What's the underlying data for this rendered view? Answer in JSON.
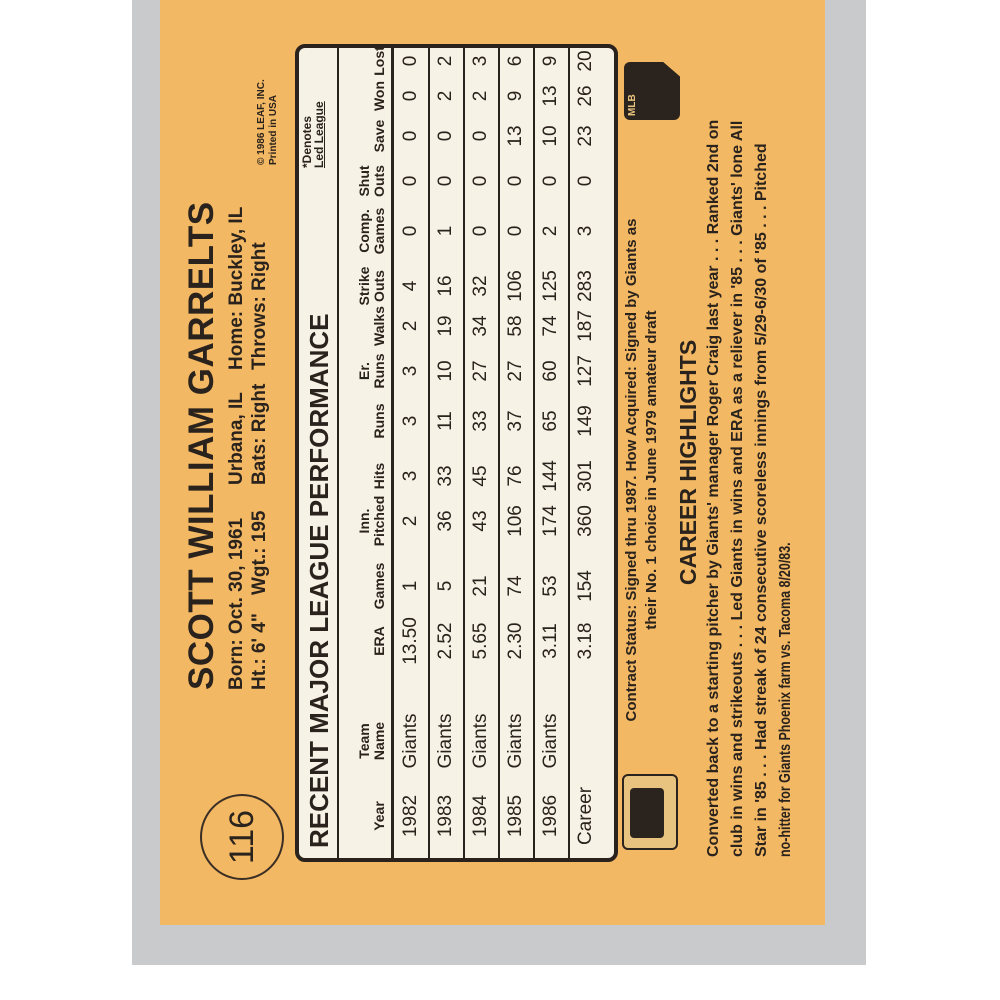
{
  "card": {
    "number": "116",
    "name": "SCOTT WILLIAM GARRELTS",
    "born": "Born: Oct. 30, 1961",
    "birthplace": "Urbana, IL",
    "home": "Home: Buckley, IL",
    "height": "Ht.: 6' 4\"",
    "weight": "Wgt.: 195",
    "bats": "Bats: Right",
    "throws": "Throws: Right",
    "copyright": "© 1986 LEAF, INC.",
    "printed": "Printed in USA",
    "background_color": "#f2b863"
  },
  "stats": {
    "title": "RECENT MAJOR LEAGUE PERFORMANCE",
    "denotes_line1": "*Denotes",
    "denotes_line2": "Led League",
    "headers": [
      [
        "",
        "Year"
      ],
      [
        "Team",
        "Name"
      ],
      [
        "",
        "ERA"
      ],
      [
        "",
        "Games"
      ],
      [
        "Inn.",
        "Pitched"
      ],
      [
        "",
        "Hits"
      ],
      [
        "",
        "Runs"
      ],
      [
        "Er.",
        "Runs"
      ],
      [
        "",
        "Walks"
      ],
      [
        "Strike",
        "Outs"
      ],
      [
        "Comp.",
        "Games"
      ],
      [
        "Shut",
        "Outs"
      ],
      [
        "",
        "Save"
      ],
      [
        "",
        "Won"
      ],
      [
        "",
        "Lost"
      ]
    ],
    "rows": [
      [
        "1982",
        "Giants",
        "13.50",
        "1",
        "2",
        "3",
        "3",
        "3",
        "2",
        "4",
        "0",
        "0",
        "0",
        "0",
        "0"
      ],
      [
        "1983",
        "Giants",
        "2.52",
        "5",
        "36",
        "33",
        "11",
        "10",
        "19",
        "16",
        "1",
        "0",
        "0",
        "2",
        "2"
      ],
      [
        "1984",
        "Giants",
        "5.65",
        "21",
        "43",
        "45",
        "33",
        "27",
        "34",
        "32",
        "0",
        "0",
        "0",
        "2",
        "3"
      ],
      [
        "1985",
        "Giants",
        "2.30",
        "74",
        "106",
        "76",
        "37",
        "27",
        "58",
        "106",
        "0",
        "0",
        "13",
        "9",
        "6"
      ],
      [
        "1986",
        "Giants",
        "3.11",
        "53",
        "174",
        "144",
        "65",
        "60",
        "74",
        "125",
        "2",
        "0",
        "10",
        "13",
        "9"
      ],
      [
        "Career",
        "",
        "3.18",
        "154",
        "360",
        "301",
        "149",
        "127",
        "187",
        "283",
        "3",
        "0",
        "23",
        "26",
        "20"
      ]
    ]
  },
  "contract": {
    "line1": "Contract Status: Signed thru 1987. How Acquired: Signed by Giants as",
    "line2": "their No. 1 choice in June 1979 amateur draft"
  },
  "highlights": {
    "title": "CAREER HIGHLIGHTS",
    "lines": [
      "Converted back to a starting pitcher by Giants' manager Roger Craig last year . . . Ranked 2nd on",
      "club in wins and strikeouts . . . Led Giants in wins and ERA as a reliever in '85 . . . Giants' lone All",
      "Star in '85 . . . Had streak of 24 consecutive scoreless innings from 5/29-6/30 of '85 . . . Pitched",
      "no-hitter for Giants Phoenix farm vs. Tacoma 8/20/83."
    ]
  },
  "logos": {
    "left": "MLBPA logo",
    "right": "MLB logo",
    "right_text": "MLB"
  }
}
